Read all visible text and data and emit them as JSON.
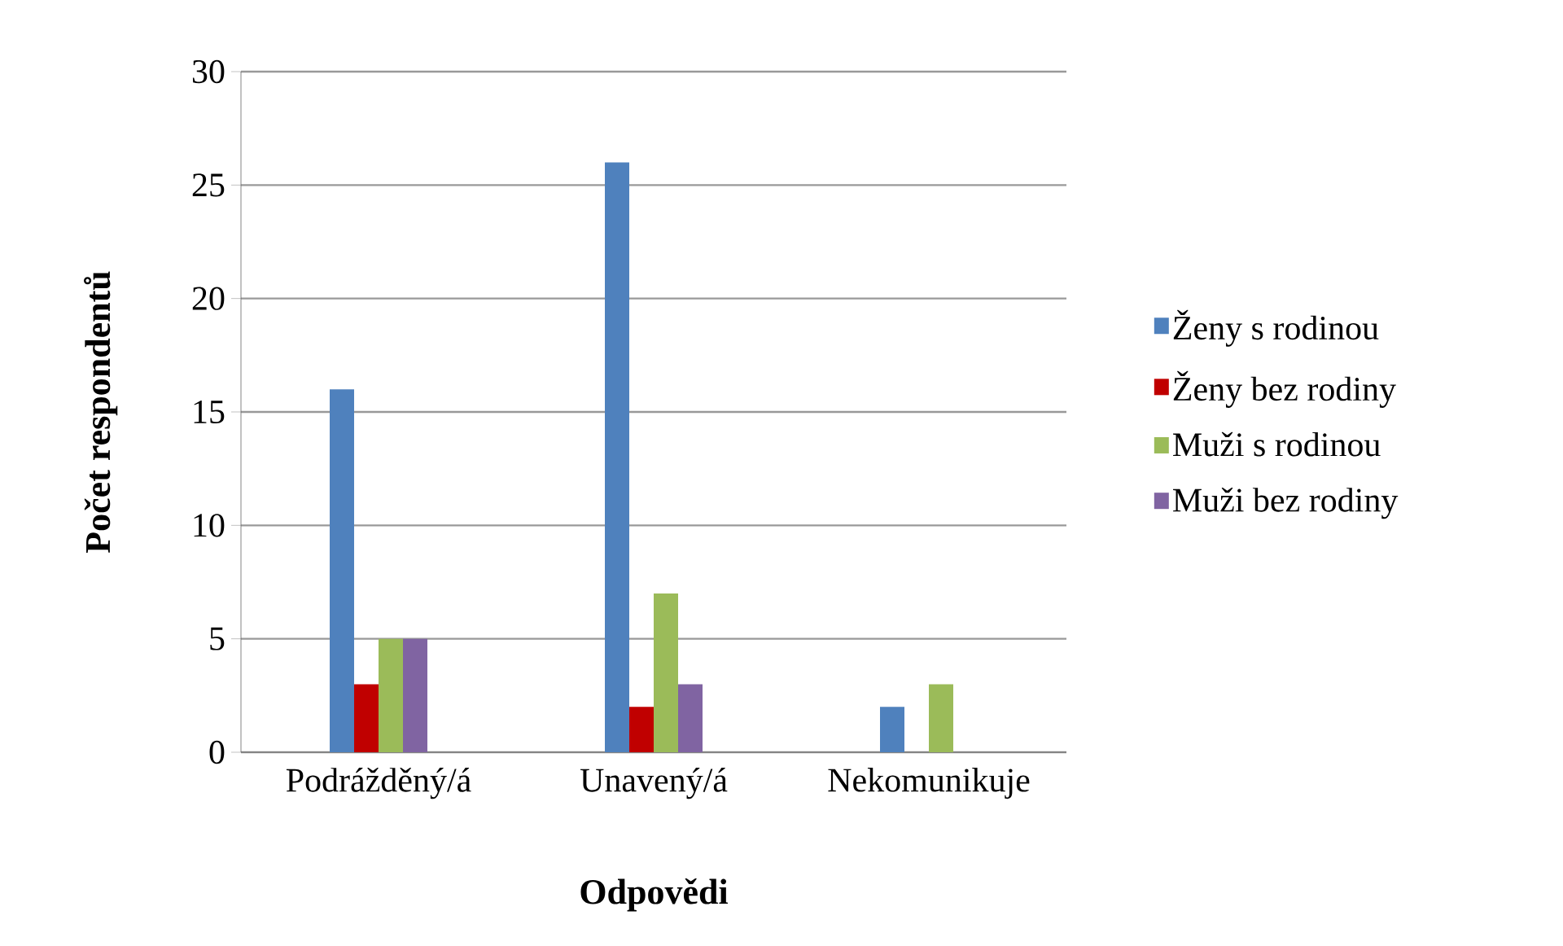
{
  "chart_data": {
    "type": "bar",
    "xlabel": "Odpovědi",
    "ylabel": "Počet respondentů",
    "categories": [
      "Podrážděný/á",
      "Unavený/á",
      "Nekomunikuje"
    ],
    "series": [
      {
        "name": "Ženy s rodinou",
        "color": "#4f81bd",
        "values": [
          16,
          26,
          2
        ]
      },
      {
        "name": "Ženy bez rodiny",
        "color": "#c00000",
        "values": [
          3,
          2,
          0
        ]
      },
      {
        "name": "Muži s rodinou",
        "color": "#9bbb59",
        "values": [
          5,
          7,
          3
        ]
      },
      {
        "name": "Muži bez rodiny",
        "color": "#8064a2",
        "values": [
          5,
          3,
          0
        ]
      }
    ],
    "ylim": [
      0,
      30
    ],
    "yticks": [
      0,
      5,
      10,
      15,
      20,
      25,
      30
    ],
    "grid": "y",
    "legend": "right"
  }
}
